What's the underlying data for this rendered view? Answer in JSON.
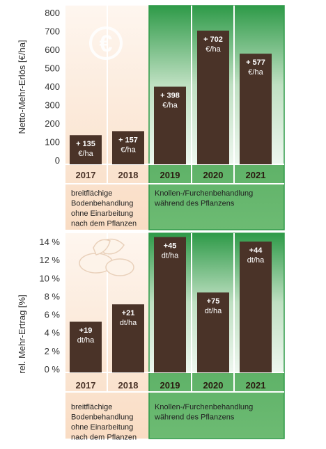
{
  "colors": {
    "bar": "#4a3328",
    "peach_top": "#fdf0e6",
    "peach_bottom": "#f8dcc4",
    "green_dark": "#2e9a48",
    "green_light": "#ffffff",
    "green_band": "#63b46c",
    "label_dark": "#4a3328",
    "axis_text": "#333333"
  },
  "chart_data": [
    {
      "type": "bar",
      "ylabel": "Netto-Mehr-Erlös [€/ha]",
      "ylim": [
        0,
        800
      ],
      "yticks": [
        "0",
        "100",
        "200",
        "300",
        "400",
        "500",
        "600",
        "700",
        "800"
      ],
      "categories": [
        "2017",
        "2018",
        "2019",
        "2020",
        "2021"
      ],
      "values": [
        135,
        157,
        398,
        702,
        577
      ],
      "data_labels": [
        [
          "+ 135",
          "€/ha"
        ],
        [
          "+ 157",
          "€/ha"
        ],
        [
          "+ 398",
          "€/ha"
        ],
        [
          "+ 702",
          "€/ha"
        ],
        [
          "+ 577",
          "€/ha"
        ]
      ],
      "groups": [
        {
          "label": "breitflächige Bodenbehandlung ohne Einarbeitung nach dem Pflanzen",
          "lines": [
            "breitflächige",
            "Bodenbehandlung",
            "ohne Einarbeitung",
            "nach dem Pflanzen"
          ]
        },
        {
          "label": "Knollen-/Furchenbehandlung während des Pflanzens",
          "lines": [
            "Knollen-/Furchenbehandlung",
            "während des Pflanzens"
          ]
        }
      ],
      "icon": "euro-icon"
    },
    {
      "type": "bar",
      "ylabel": "rel. Mehr-Ertrag [%]",
      "ylim": [
        0,
        14
      ],
      "yticks": [
        "0 %",
        "2 %",
        "4 %",
        "6 %",
        "8 %",
        "10 %",
        "12 %",
        "14 %"
      ],
      "categories": [
        "2017",
        "2018",
        "2019",
        "2020",
        "2021"
      ],
      "values": [
        5.2,
        7.1,
        14.5,
        8.4,
        14.0
      ],
      "data_labels": [
        [
          "+19",
          "dt/ha"
        ],
        [
          "+21",
          "dt/ha"
        ],
        [
          "+45",
          "dt/ha"
        ],
        [
          "+75",
          "dt/ha"
        ],
        [
          "+44",
          "dt/ha"
        ]
      ],
      "groups": [
        {
          "label": "breitflächige Bodenbehandlung ohne Einarbeitung nach dem Pflanzen",
          "lines": [
            "breitflächige",
            "Bodenbehandlung",
            "ohne Einarbeitung",
            "nach dem Pflanzen"
          ]
        },
        {
          "label": "Knollen-/Furchenbehandlung während des Pflanzens",
          "lines": [
            "Knollen-/Furchenbehandlung",
            "während des Pflanzens"
          ]
        }
      ],
      "icon": "potato-icon"
    }
  ]
}
